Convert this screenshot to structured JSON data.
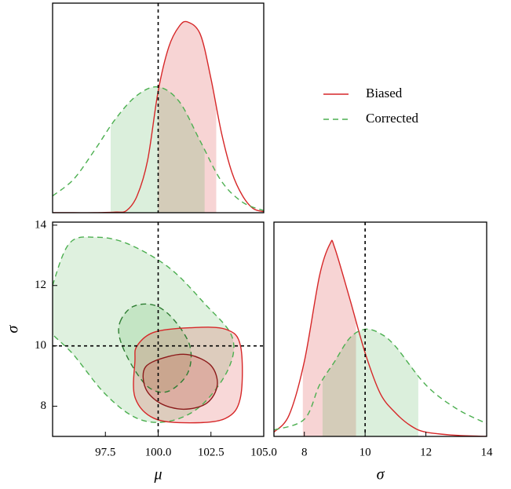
{
  "chart_data": [
    {
      "type": "density",
      "xlim": [
        95,
        105
      ],
      "ylim": [
        0,
        1
      ],
      "truth": 100,
      "series": [
        {
          "name": "Biased",
          "color": "#d62728",
          "dash": false,
          "band": [
            100.0,
            102.75
          ],
          "x": [
            95,
            96,
            97,
            98,
            98.5,
            99,
            99.5,
            100,
            100.5,
            101,
            101.4,
            102,
            102.5,
            103,
            103.5,
            104,
            104.5,
            105
          ],
          "values": [
            0.0,
            0.0,
            0.0,
            0.003,
            0.01,
            0.08,
            0.25,
            0.58,
            0.79,
            0.89,
            0.91,
            0.85,
            0.64,
            0.38,
            0.19,
            0.08,
            0.02,
            0.005
          ]
        },
        {
          "name": "Corrected",
          "color": "#4caf50",
          "dash": true,
          "band": [
            97.75,
            102.2
          ],
          "x": [
            95,
            96,
            97,
            98,
            99,
            100,
            101,
            102,
            103,
            104,
            105
          ],
          "values": [
            0.08,
            0.16,
            0.3,
            0.45,
            0.56,
            0.6,
            0.53,
            0.34,
            0.15,
            0.05,
            0.01
          ]
        }
      ]
    },
    {
      "type": "contour",
      "xlim": [
        95,
        105
      ],
      "ylim": [
        7,
        14.1
      ],
      "xticks": [
        97.5,
        {
          "value": 100,
          "label": "100.0"
        },
        102.5,
        {
          "value": 105,
          "label": "105.0"
        }
      ],
      "yticks": [
        8,
        10,
        12,
        14
      ],
      "xlabel": "μ",
      "ylabel": "σ",
      "truth": {
        "x": 100,
        "y": 10
      },
      "series": [
        {
          "color": "#4caf50",
          "dash": true,
          "levels": [
            {
              "line": "#4caf50",
              "x": [
                95,
                95.8,
                97,
                98.5,
                100.5,
                102.2,
                103.5,
                103.3,
                102,
                100.5,
                99,
                97.5,
                96,
                94.6
              ],
              "y": [
                12.0,
                13.4,
                13.6,
                13.4,
                12.6,
                11.4,
                10.3,
                9.2,
                8.0,
                7.5,
                7.6,
                8.4,
                9.7,
                10.8
              ]
            },
            {
              "line": "#2e7d32",
              "x": [
                98.2,
                98.8,
                99.8,
                100.7,
                101.5,
                101.4,
                100.5,
                99.6,
                98.8,
                98.2
              ],
              "y": [
                10.8,
                11.3,
                11.35,
                10.9,
                10.0,
                9.1,
                8.5,
                8.6,
                9.3,
                10.2
              ]
            }
          ]
        },
        {
          "color": "#d62728",
          "dash": false,
          "levels": [
            {
              "line": "#d62728",
              "x": [
                99.0,
                99.8,
                101.5,
                103.2,
                103.9,
                103.9,
                103.2,
                101.5,
                99.8,
                98.9,
                98.9
              ],
              "y": [
                10.0,
                10.45,
                10.6,
                10.55,
                10.0,
                8.3,
                7.6,
                7.45,
                7.6,
                8.3,
                9.5
              ]
            },
            {
              "line": "#8b1a1a",
              "x": [
                99.4,
                100.5,
                101.5,
                102.5,
                102.8,
                102.3,
                101.2,
                100.1,
                99.4
              ],
              "y": [
                9.3,
                9.65,
                9.7,
                9.35,
                8.7,
                8.1,
                7.9,
                8.1,
                8.6
              ]
            }
          ]
        }
      ]
    },
    {
      "type": "density",
      "xlim": [
        7,
        14
      ],
      "ylim": [
        0,
        1
      ],
      "truth": 10,
      "xticks": [
        8,
        10,
        12,
        14
      ],
      "xlabel": "σ",
      "series": [
        {
          "color": "#d62728",
          "dash": false,
          "band": [
            7.95,
            9.7
          ],
          "x": [
            7,
            7.5,
            8,
            8.5,
            8.85,
            9,
            9.5,
            10,
            10.5,
            11,
            11.5,
            12,
            13,
            14
          ],
          "values": [
            0.02,
            0.1,
            0.35,
            0.75,
            0.9,
            0.88,
            0.64,
            0.39,
            0.2,
            0.11,
            0.05,
            0.02,
            0.005,
            0.0
          ]
        },
        {
          "color": "#4caf50",
          "dash": true,
          "band": [
            8.6,
            11.75
          ],
          "x": [
            7,
            8,
            8.5,
            9,
            9.5,
            10,
            10.5,
            11,
            12,
            13,
            14
          ],
          "values": [
            0.03,
            0.08,
            0.24,
            0.35,
            0.46,
            0.5,
            0.48,
            0.42,
            0.24,
            0.13,
            0.06
          ]
        }
      ]
    }
  ]
}
